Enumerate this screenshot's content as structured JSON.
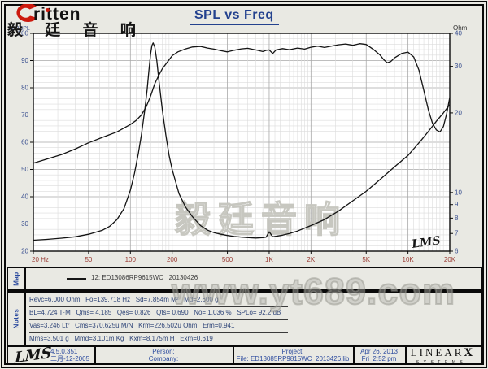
{
  "header": {
    "logo_text": "ritten",
    "logo_cn": "毅 廷 音 响",
    "title": "SPL vs Freq"
  },
  "colors": {
    "accent_navy": "#23418e",
    "axis_label_blue": "#3a5090",
    "freq_label_maroon": "#9a3c34",
    "curve_black": "#141414",
    "grid_minor": "#dcdcdc",
    "grid_major": "#a9a9a9",
    "watermark_gray": "#c7c7c0",
    "footer_blue": "#2b4a9e",
    "page_bg": "#e9e9e3"
  },
  "chart_data": {
    "type": "line",
    "title": "SPL vs Freq",
    "grid": true,
    "x_axis": {
      "scale": "log",
      "range": [
        20,
        20000
      ],
      "ticks": [
        "20 Hz",
        "50",
        "100",
        "200",
        "500",
        "1K",
        "2K",
        "5K",
        "10K",
        "20K"
      ],
      "tick_values": [
        20,
        50,
        100,
        200,
        500,
        1000,
        2000,
        5000,
        10000,
        20000
      ]
    },
    "y_left": {
      "label": "dBSPL",
      "top_label": "100",
      "scale": "linear",
      "range": [
        20,
        100
      ],
      "ticks": [
        100,
        90,
        80,
        70,
        60,
        50,
        40,
        30,
        20
      ]
    },
    "y_right": {
      "label": "Ohm",
      "scale": "log",
      "range": [
        6,
        40
      ],
      "ticks": [
        40,
        30,
        20,
        10,
        9,
        8,
        7,
        6
      ]
    },
    "series": [
      {
        "name": "SPL",
        "axis": "left",
        "points": [
          [
            20,
            52.3
          ],
          [
            25,
            53.8
          ],
          [
            32,
            55.5
          ],
          [
            40,
            57.5
          ],
          [
            50,
            59.8
          ],
          [
            63,
            61.8
          ],
          [
            80,
            63.8
          ],
          [
            100,
            66.5
          ],
          [
            110,
            68
          ],
          [
            120,
            70
          ],
          [
            130,
            73
          ],
          [
            140,
            77
          ],
          [
            150,
            81.5
          ],
          [
            160,
            84.5
          ],
          [
            170,
            87
          ],
          [
            185,
            89.5
          ],
          [
            200,
            91.8
          ],
          [
            220,
            93.2
          ],
          [
            250,
            94.3
          ],
          [
            280,
            95
          ],
          [
            320,
            95.2
          ],
          [
            360,
            94.6
          ],
          [
            400,
            94.2
          ],
          [
            450,
            93.6
          ],
          [
            500,
            93.2
          ],
          [
            560,
            93.8
          ],
          [
            630,
            94.3
          ],
          [
            700,
            94.5
          ],
          [
            800,
            93.9
          ],
          [
            900,
            93.3
          ],
          [
            960,
            93.8
          ],
          [
            1000,
            93.9
          ],
          [
            1060,
            92.6
          ],
          [
            1120,
            93.9
          ],
          [
            1250,
            94.4
          ],
          [
            1400,
            94
          ],
          [
            1600,
            94.6
          ],
          [
            1800,
            94.2
          ],
          [
            2000,
            94.9
          ],
          [
            2240,
            95.3
          ],
          [
            2500,
            94.8
          ],
          [
            2800,
            95.3
          ],
          [
            3150,
            95.8
          ],
          [
            3550,
            96.1
          ],
          [
            4000,
            95.6
          ],
          [
            4500,
            96.2
          ],
          [
            5000,
            95.9
          ],
          [
            5600,
            94.2
          ],
          [
            6300,
            92
          ],
          [
            6700,
            90.3
          ],
          [
            7100,
            89.2
          ],
          [
            7500,
            89.6
          ],
          [
            8000,
            91
          ],
          [
            9000,
            92.6
          ],
          [
            10000,
            93.1
          ],
          [
            11000,
            91.3
          ],
          [
            12000,
            86.5
          ],
          [
            13000,
            79
          ],
          [
            14000,
            72
          ],
          [
            15000,
            67
          ],
          [
            16000,
            64.5
          ],
          [
            17000,
            63.8
          ],
          [
            18000,
            65.8
          ],
          [
            19000,
            70.5
          ],
          [
            20000,
            76.5
          ]
        ]
      },
      {
        "name": "Impedance",
        "axis": "right",
        "points": [
          [
            20,
            6.6
          ],
          [
            25,
            6.65
          ],
          [
            32,
            6.72
          ],
          [
            40,
            6.8
          ],
          [
            50,
            6.95
          ],
          [
            63,
            7.2
          ],
          [
            71,
            7.45
          ],
          [
            80,
            7.9
          ],
          [
            90,
            8.7
          ],
          [
            100,
            10.2
          ],
          [
            107,
            11.8
          ],
          [
            114,
            14
          ],
          [
            120,
            16.5
          ],
          [
            127,
            20.5
          ],
          [
            132,
            24.5
          ],
          [
            136,
            29
          ],
          [
            140,
            33.5
          ],
          [
            143,
            36
          ],
          [
            146,
            36.8
          ],
          [
            150,
            35.5
          ],
          [
            155,
            31.5
          ],
          [
            160,
            27
          ],
          [
            170,
            20.5
          ],
          [
            180,
            16.5
          ],
          [
            190,
            13.8
          ],
          [
            200,
            12.2
          ],
          [
            224,
            9.9
          ],
          [
            250,
            8.8
          ],
          [
            280,
            8.1
          ],
          [
            320,
            7.5
          ],
          [
            360,
            7.2
          ],
          [
            400,
            7.05
          ],
          [
            450,
            6.95
          ],
          [
            500,
            6.88
          ],
          [
            560,
            6.82
          ],
          [
            630,
            6.78
          ],
          [
            710,
            6.75
          ],
          [
            800,
            6.73
          ],
          [
            900,
            6.75
          ],
          [
            950,
            6.78
          ],
          [
            1000,
            7.1
          ],
          [
            1060,
            6.8
          ],
          [
            1250,
            6.9
          ],
          [
            1400,
            7.0
          ],
          [
            1600,
            7.15
          ],
          [
            2000,
            7.5
          ],
          [
            2500,
            7.9
          ],
          [
            3150,
            8.5
          ],
          [
            4000,
            9.3
          ],
          [
            5000,
            10.1
          ],
          [
            6300,
            11.2
          ],
          [
            8000,
            12.5
          ],
          [
            10000,
            13.8
          ],
          [
            12500,
            15.8
          ],
          [
            14000,
            17
          ],
          [
            16000,
            18.6
          ],
          [
            18000,
            20
          ],
          [
            20000,
            21.5
          ]
        ]
      }
    ],
    "watermark_plot": "毅廷音响",
    "lms_signature": "LMS"
  },
  "map_section": {
    "tab": "Map",
    "legend_text": "12: ED13086RP9615WC   20130426"
  },
  "notes_section": {
    "tab": "Notes",
    "lines": [
      "Revc=6.000 Ohm   Fo=139.718 Hz   Sd=7.854m M²   Md=2.600 g",
      "BL=4.724 T·M   Qms= 4.185   Qes= 0.826   Qts= 0.690   No= 1.036 %   SPLo= 92.2 dB",
      "Vas=3.246 Ltr   Cms=370.625u M/N   Krm=226.502u Ohm   Erm=0.941",
      "Mms=3.501 g   Mmd=3.101m Kg   Kxm=8.175m H   Exm=0.619"
    ]
  },
  "watermark_site": "www.yt689.com",
  "footer": {
    "lms_logo": "LMS",
    "version": "4.5.0.351",
    "date_cn": "二月-12-2005",
    "person_label": "Person:",
    "company_label": "Company:",
    "project_label": "Project:",
    "file_label": "File: ED13085RP9815WC  2013426.lib",
    "date": "Apr 26, 2013",
    "time": "Fri  2:52 pm",
    "brand_main": "LINEAR",
    "brand_x": "X",
    "brand_sub": "SYSTEMS"
  }
}
